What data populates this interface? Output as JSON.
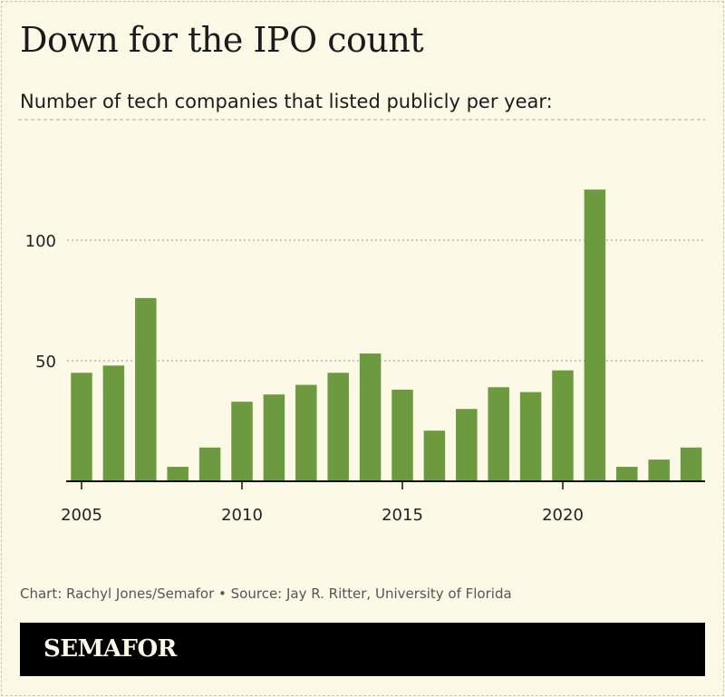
{
  "title": "Down for the IPO count",
  "subtitle": "Number of tech companies that listed publicly per year:",
  "footer": "Chart: Rachyl Jones/Semafor • Source: Jay R. Ritter, University of Florida",
  "brand": "SEMAFOR",
  "colors": {
    "bar": "#6e9a3f",
    "background": "#fcfae6",
    "grid": "#aaa99b"
  },
  "chart_data": {
    "type": "bar",
    "categories": [
      2005,
      2006,
      2007,
      2008,
      2009,
      2010,
      2011,
      2012,
      2013,
      2014,
      2015,
      2016,
      2017,
      2018,
      2019,
      2020,
      2021,
      2022,
      2023,
      2024
    ],
    "values": [
      45,
      48,
      76,
      6,
      14,
      33,
      36,
      40,
      45,
      53,
      38,
      21,
      30,
      39,
      37,
      46,
      121,
      6,
      9,
      14
    ],
    "xticks": [
      "2005",
      "2010",
      "2015",
      "2020"
    ],
    "yticks": [
      "50",
      "100"
    ],
    "ylim": [
      0,
      150
    ],
    "grid": true
  }
}
